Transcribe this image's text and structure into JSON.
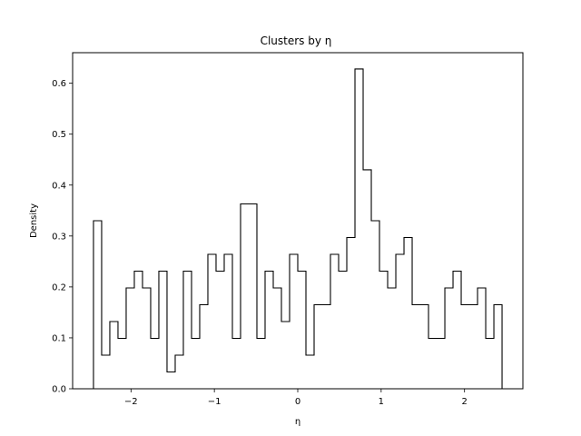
{
  "chart_data": {
    "type": "histogram",
    "title": "Clusters by η",
    "xlabel": "η",
    "ylabel": "Density",
    "xlim": [
      -2.7,
      2.7
    ],
    "ylim": [
      0,
      0.66
    ],
    "xticks": [
      -2,
      -1,
      0,
      1,
      2
    ],
    "xtick_labels": [
      "−2",
      "−1",
      "0",
      "1",
      "2"
    ],
    "yticks": [
      0.0,
      0.1,
      0.2,
      0.3,
      0.4,
      0.5,
      0.6
    ],
    "ytick_labels": [
      "0.0",
      "0.1",
      "0.2",
      "0.3",
      "0.4",
      "0.5",
      "0.6"
    ],
    "grid": false,
    "bin_start": -2.45,
    "bin_width": 0.098,
    "values": [
      0.33,
      0.066,
      0.132,
      0.099,
      0.198,
      0.231,
      0.198,
      0.099,
      0.231,
      0.033,
      0.066,
      0.231,
      0.099,
      0.165,
      0.264,
      0.231,
      0.264,
      0.099,
      0.363,
      0.363,
      0.099,
      0.231,
      0.198,
      0.132,
      0.264,
      0.231,
      0.066,
      0.165,
      0.165,
      0.264,
      0.231,
      0.297,
      0.628,
      0.43,
      0.33,
      0.231,
      0.198,
      0.264,
      0.297,
      0.165,
      0.165,
      0.099,
      0.099,
      0.198,
      0.231,
      0.165,
      0.165,
      0.198,
      0.099,
      0.165
    ],
    "color": "#000000"
  }
}
